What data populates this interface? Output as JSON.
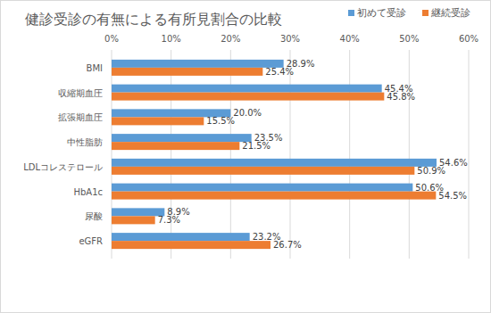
{
  "chart_data": {
    "type": "bar",
    "orientation": "horizontal",
    "title": "健診受診の有無による有所見割合の比較",
    "categories": [
      "BMI",
      "収縮期血圧",
      "拡張期血圧",
      "中性脂肪",
      "LDLコレステロール",
      "HbA1c",
      "尿酸",
      "eGFR"
    ],
    "series": [
      {
        "name": "初めて受診",
        "color": "#5b9bd5",
        "values": [
          28.9,
          45.4,
          20.0,
          23.5,
          54.6,
          50.6,
          8.9,
          23.2
        ],
        "value_labels": [
          "28.9%",
          "45.4%",
          "20.0%",
          "23.5%",
          "54.6%",
          "50.6%",
          "8.9%",
          "23.2%"
        ]
      },
      {
        "name": "継続受診",
        "color": "#ed7d31",
        "values": [
          25.4,
          45.8,
          15.5,
          21.5,
          50.9,
          54.5,
          7.3,
          26.7
        ],
        "value_labels": [
          "25.4%",
          "45.8%",
          "15.5%",
          "21.5%",
          "50.9%",
          "54.5%",
          "7.3%",
          "26.7%"
        ]
      }
    ],
    "xlim": [
      0,
      60
    ],
    "xticks": [
      {
        "value": 0,
        "label": "0%"
      },
      {
        "value": 10,
        "label": "10%"
      },
      {
        "value": 20,
        "label": "20%"
      },
      {
        "value": 30,
        "label": "30%"
      },
      {
        "value": 40,
        "label": "40%"
      },
      {
        "value": 50,
        "label": "50%"
      },
      {
        "value": 60,
        "label": "60%"
      }
    ],
    "grid": true,
    "legend": "top",
    "data_labels": true
  }
}
